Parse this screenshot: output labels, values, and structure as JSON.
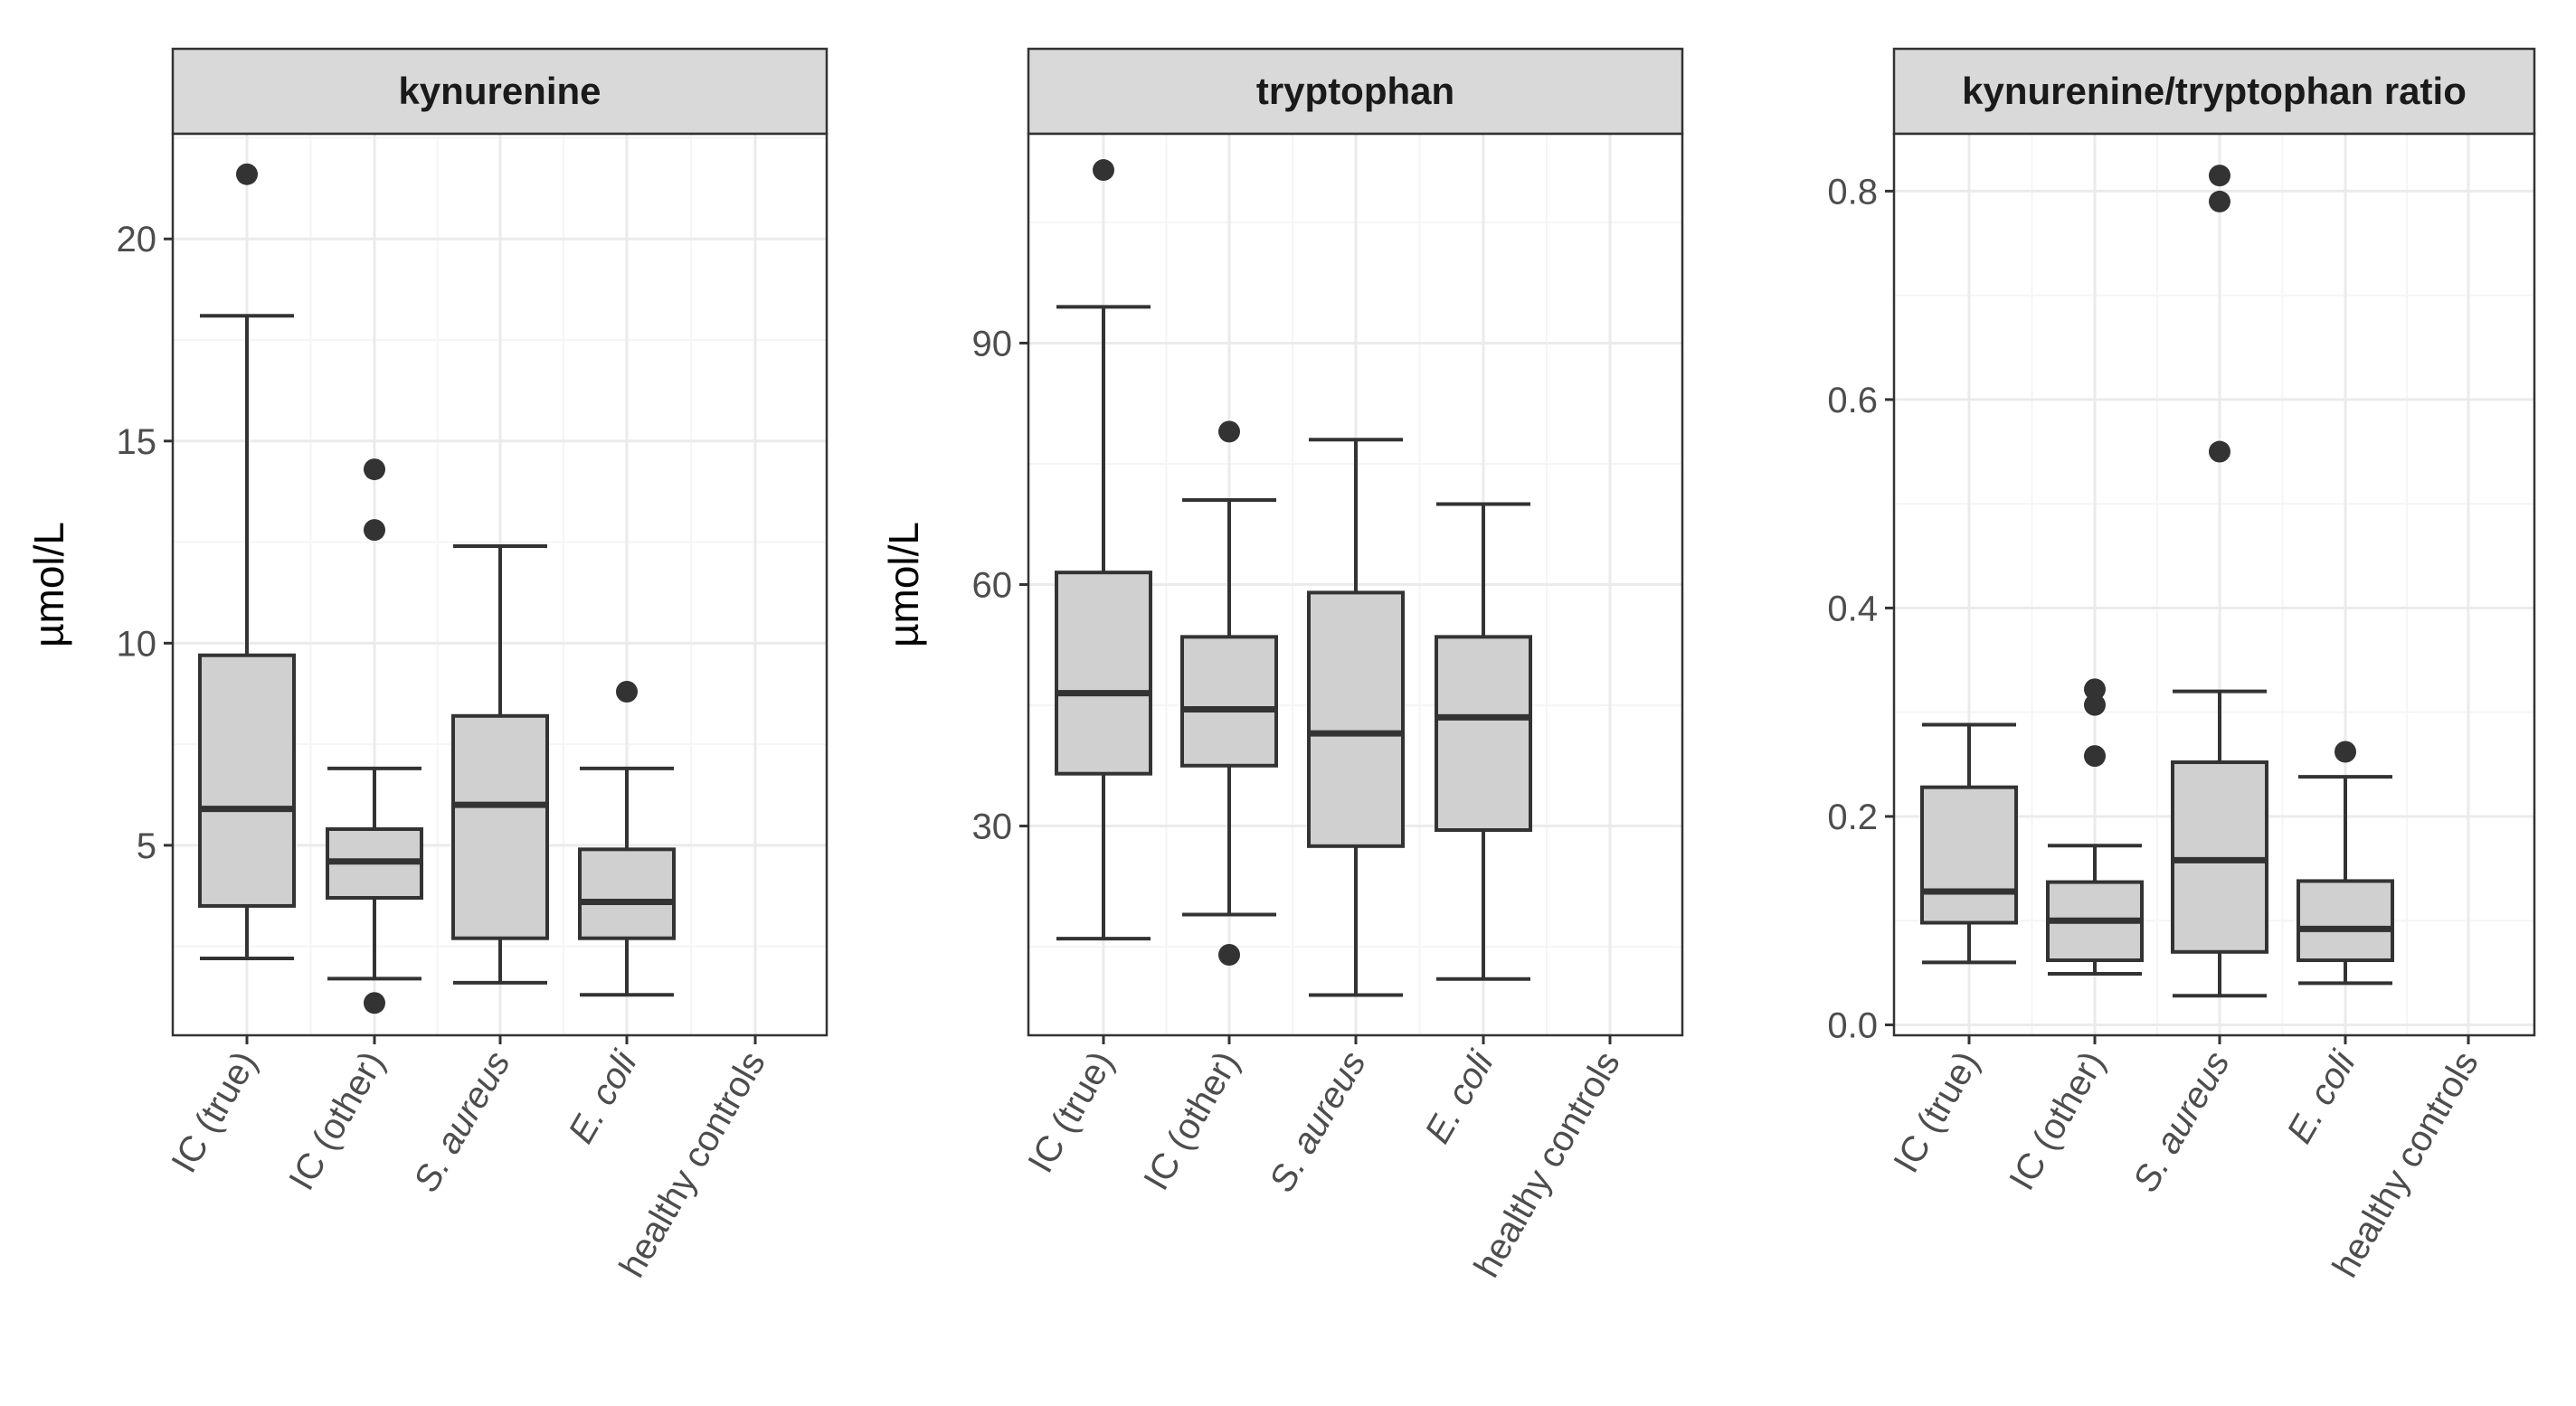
{
  "colors": {
    "box_fill": "#d0d0d0",
    "line": "#333333",
    "strip_fill": "#d9d9d9",
    "grid_major": "#ebebeb",
    "grid_minor": "#f5f5f5",
    "panel_border": "#333333"
  },
  "chart_data": [
    {
      "type": "boxplot",
      "title": "kynurenine",
      "ylabel": "µmol/L",
      "xlabel": "",
      "ylim": [
        0.3,
        22.6
      ],
      "yticks": [
        5,
        10,
        15,
        20
      ],
      "yticklabels": [
        "5",
        "10",
        "15",
        "20"
      ],
      "grid": true,
      "categories": [
        {
          "label": "IC (true)",
          "italic": false
        },
        {
          "label": "IC (other)",
          "italic": false
        },
        {
          "label": "S. aureus",
          "italic": true
        },
        {
          "label": "E. coli",
          "italic": true
        },
        {
          "label": "healthy controls",
          "italic": false
        }
      ],
      "boxes": [
        {
          "min": 2.2,
          "q1": 3.5,
          "median": 5.9,
          "q3": 9.7,
          "max": 18.1,
          "outliers": [
            21.6
          ]
        },
        {
          "min": 1.7,
          "q1": 3.7,
          "median": 4.6,
          "q3": 5.4,
          "max": 6.9,
          "outliers": [
            14.3,
            12.8,
            1.1
          ]
        },
        {
          "min": 1.6,
          "q1": 2.7,
          "median": 6.0,
          "q3": 8.2,
          "max": 12.4,
          "outliers": []
        },
        {
          "min": 1.3,
          "q1": 2.7,
          "median": 3.6,
          "q3": 4.9,
          "max": 6.9,
          "outliers": [
            8.8
          ]
        },
        null
      ]
    },
    {
      "type": "boxplot",
      "title": "tryptophan",
      "ylabel": "µmol/L",
      "xlabel": "",
      "ylim": [
        4,
        116
      ],
      "yticks": [
        30,
        60,
        90
      ],
      "yticklabels": [
        "30",
        "60",
        "90"
      ],
      "grid": true,
      "categories": [
        {
          "label": "IC (true)",
          "italic": false
        },
        {
          "label": "IC (other)",
          "italic": false
        },
        {
          "label": "S. aureus",
          "italic": true
        },
        {
          "label": "E. coli",
          "italic": true
        },
        {
          "label": "healthy controls",
          "italic": false
        }
      ],
      "boxes": [
        {
          "min": 16,
          "q1": 36.5,
          "median": 46.5,
          "q3": 61.5,
          "max": 94.5,
          "outliers": [
            111.5
          ]
        },
        {
          "min": 19,
          "q1": 37.5,
          "median": 44.5,
          "q3": 53.5,
          "max": 70.5,
          "outliers": [
            79,
            14
          ]
        },
        {
          "min": 9,
          "q1": 27.5,
          "median": 41.5,
          "q3": 59,
          "max": 78,
          "outliers": []
        },
        {
          "min": 11,
          "q1": 29.5,
          "median": 43.5,
          "q3": 53.5,
          "max": 70,
          "outliers": []
        },
        null
      ]
    },
    {
      "type": "boxplot",
      "title": "kynurenine/tryptophan ratio",
      "ylabel": "",
      "xlabel": "",
      "ylim": [
        -0.01,
        0.855
      ],
      "yticks": [
        0.0,
        0.2,
        0.4,
        0.6,
        0.8
      ],
      "yticklabels": [
        "0.0",
        "0.2",
        "0.4",
        "0.6",
        "0.8"
      ],
      "grid": true,
      "categories": [
        {
          "label": "IC (true)",
          "italic": false
        },
        {
          "label": "IC (other)",
          "italic": false
        },
        {
          "label": "S. aureus",
          "italic": true
        },
        {
          "label": "E. coli",
          "italic": true
        },
        {
          "label": "healthy controls",
          "italic": false
        }
      ],
      "boxes": [
        {
          "min": 0.06,
          "q1": 0.098,
          "median": 0.128,
          "q3": 0.228,
          "max": 0.288,
          "outliers": []
        },
        {
          "min": 0.049,
          "q1": 0.062,
          "median": 0.1,
          "q3": 0.137,
          "max": 0.172,
          "outliers": [
            0.322,
            0.307,
            0.258
          ]
        },
        {
          "min": 0.028,
          "q1": 0.07,
          "median": 0.158,
          "q3": 0.252,
          "max": 0.32,
          "outliers": [
            0.815,
            0.79,
            0.55
          ]
        },
        {
          "min": 0.04,
          "q1": 0.062,
          "median": 0.092,
          "q3": 0.138,
          "max": 0.238,
          "outliers": [
            0.262
          ]
        },
        null
      ]
    }
  ]
}
